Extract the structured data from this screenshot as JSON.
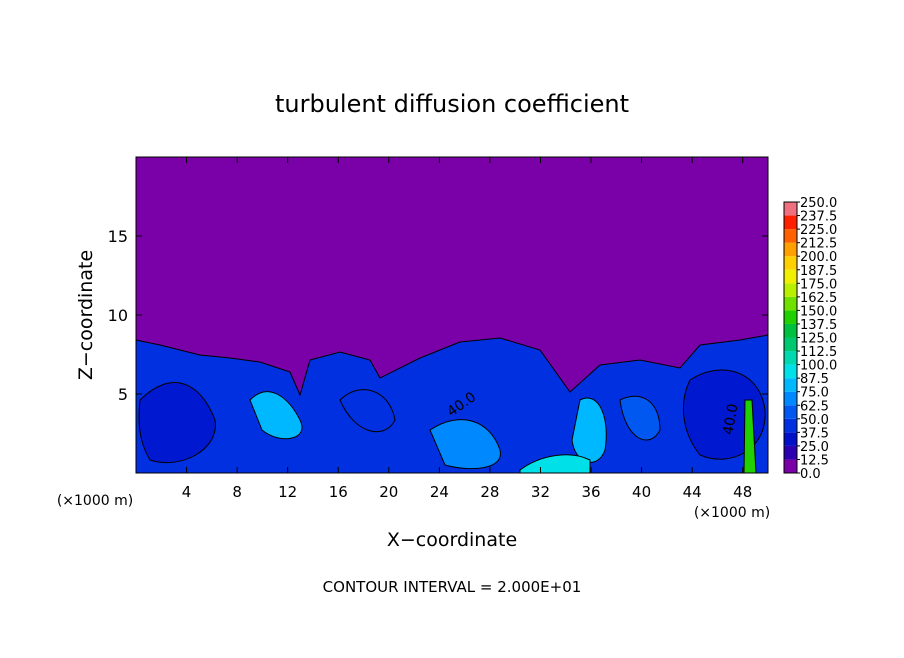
{
  "chart_data": {
    "type": "contour",
    "title": "turbulent diffusion coefficient",
    "x_label": "X−coordinate",
    "y_label": "Z−coordinate",
    "x_unit": "(×1000 m)",
    "y_unit": "(×1000 m)",
    "xlim": [
      0,
      50
    ],
    "ylim": [
      0,
      20
    ],
    "xticks": [
      4,
      8,
      12,
      16,
      20,
      24,
      28,
      32,
      36,
      40,
      44,
      48
    ],
    "yticks": [
      5,
      10,
      15
    ],
    "contour_labels": [
      "40.0",
      "40.0"
    ],
    "footnote": "CONTOUR INTERVAL = 2.000E+01",
    "colorbar": {
      "levels": [
        {
          "value": 0,
          "label": "0.0"
        },
        {
          "value": 12.5,
          "label": "12.5"
        },
        {
          "value": 25,
          "label": "25.0"
        },
        {
          "value": 37.5,
          "label": "37.5"
        },
        {
          "value": 50,
          "label": "50.0"
        },
        {
          "value": 62.5,
          "label": "62.5"
        },
        {
          "value": 75,
          "label": "75.0"
        },
        {
          "value": 87.5,
          "label": "87.5"
        },
        {
          "value": 100,
          "label": "100.0"
        },
        {
          "value": 112.5,
          "label": "112.5"
        },
        {
          "value": 125,
          "label": "125.0"
        },
        {
          "value": 137.5,
          "label": "137.5"
        },
        {
          "value": 150,
          "label": "150.0"
        },
        {
          "value": 162.5,
          "label": "162.5"
        },
        {
          "value": 175,
          "label": "175.0"
        },
        {
          "value": 187.5,
          "label": "187.5"
        },
        {
          "value": 200,
          "label": "200.0"
        },
        {
          "value": 212.5,
          "label": "212.5"
        },
        {
          "value": 225,
          "label": "225.0"
        },
        {
          "value": 237.5,
          "label": "237.5"
        },
        {
          "value": 250,
          "label": "250.0"
        }
      ],
      "colors": [
        "#7a00a8",
        "#2a00b0",
        "#0010c8",
        "#0030e0",
        "#0058f0",
        "#0088ff",
        "#00b8ff",
        "#00e0e8",
        "#00d8b0",
        "#00c870",
        "#00c040",
        "#20d000",
        "#70e000",
        "#b8f000",
        "#f0f000",
        "#ffd000",
        "#ffa000",
        "#ff6000",
        "#ff2000",
        "#f07080"
      ]
    }
  }
}
